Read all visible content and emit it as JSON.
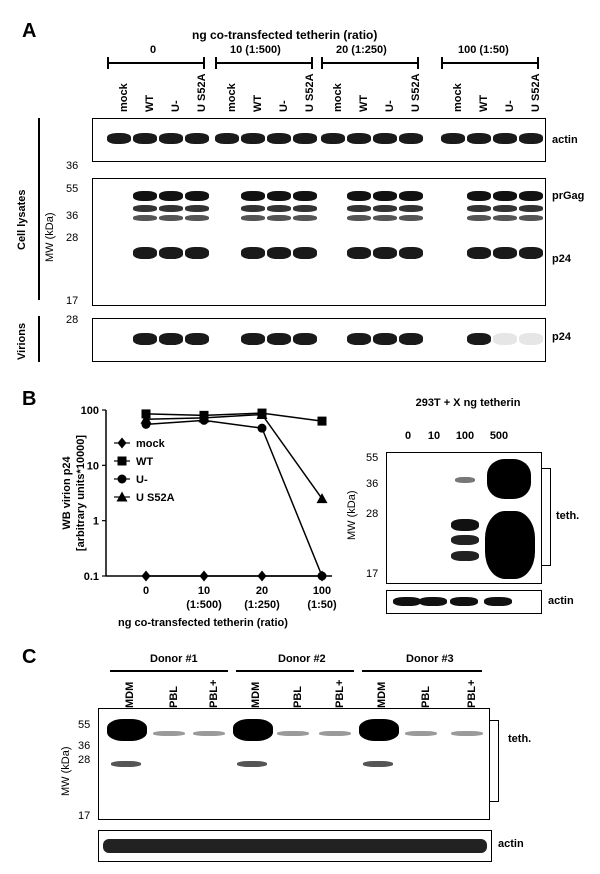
{
  "panelA": {
    "letter": "A",
    "header": "ng co-transfected tetherin (ratio)",
    "groups": [
      "0",
      "10 (1:500)",
      "20 (1:250)",
      "100 (1:50)"
    ],
    "lanes": [
      "mock",
      "WT",
      "U-",
      "U S52A"
    ],
    "side_labels": {
      "lysates": "Cell lysates",
      "virions": "Virions",
      "mw": "MW (kDa)"
    },
    "band_labels": {
      "actin": "actin",
      "prgag": "prGag",
      "p24_lysate": "p24",
      "p24_virion": "p24"
    },
    "markers_actin": [
      "36"
    ],
    "markers_gag": [
      "55",
      "36",
      "28",
      "17"
    ],
    "markers_virion": [
      "28"
    ]
  },
  "panelB": {
    "letter": "B",
    "legend": [
      "mock",
      "WT",
      "U-",
      "U S52A"
    ],
    "blot": {
      "title": "293T + X ng tetherin",
      "lanes": [
        "0",
        "10",
        "100",
        "500"
      ],
      "markers": [
        "55",
        "36",
        "28",
        "17"
      ],
      "mw": "MW (kDa)",
      "teth": "teth.",
      "actin": "actin"
    }
  },
  "chart_data": {
    "type": "line",
    "ylabel": "WB virion p24 [arbitrary units*10000]",
    "xlabel": "ng co-transfected tetherin (ratio)",
    "yscale": "log",
    "ylim": [
      0.1,
      100
    ],
    "yticks": [
      "100",
      "10",
      "1",
      "0.1"
    ],
    "x": [
      "0",
      "10",
      "20",
      "100"
    ],
    "x_sub": [
      "",
      "(1:500)",
      "(1:250)",
      "(1:50)"
    ],
    "series": [
      {
        "name": "mock",
        "marker": "diamond",
        "values": [
          0.1,
          0.1,
          0.1,
          0.1
        ]
      },
      {
        "name": "WT",
        "marker": "square",
        "values": [
          85,
          80,
          88,
          63
        ]
      },
      {
        "name": "U-",
        "marker": "circle",
        "values": [
          55,
          65,
          47,
          0.1
        ]
      },
      {
        "name": "U S52A",
        "marker": "triangle",
        "values": [
          68,
          72,
          83,
          2.5
        ]
      }
    ]
  },
  "panelC": {
    "letter": "C",
    "donors": [
      "Donor #1",
      "Donor #2",
      "Donor #3"
    ],
    "lanes": [
      "MDM",
      "PBL",
      "PBL+"
    ],
    "markers": [
      "55",
      "36",
      "28",
      "17"
    ],
    "mw": "MW (kDa)",
    "teth": "teth.",
    "actin": "actin"
  }
}
